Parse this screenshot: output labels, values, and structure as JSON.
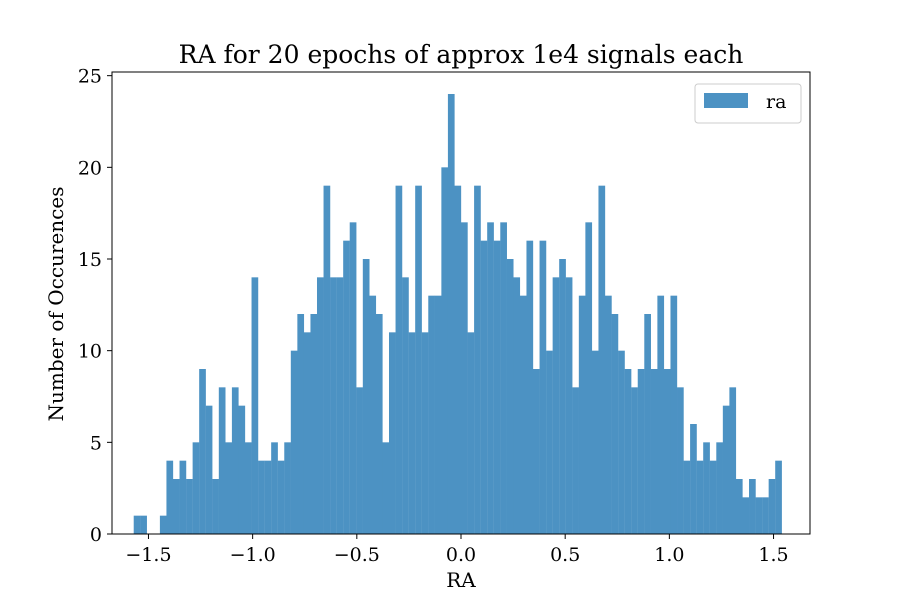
{
  "chart_data": {
    "type": "bar",
    "title": "RA for 20 epochs of approx 1e4 signals each",
    "xlabel": "RA",
    "ylabel": "Number of Occurences",
    "xlim": [
      -1.675,
      1.675
    ],
    "ylim": [
      0,
      25.2
    ],
    "x_ticks": [
      -1.5,
      -1.0,
      -0.5,
      0.0,
      0.5,
      1.0,
      1.5
    ],
    "x_tick_labels": [
      "−1.5",
      "−1.0",
      "−0.5",
      "0.0",
      "0.5",
      "1.0",
      "1.5"
    ],
    "y_ticks": [
      0,
      5,
      10,
      15,
      20,
      25
    ],
    "y_tick_labels": [
      "0",
      "5",
      "10",
      "15",
      "20",
      "25"
    ],
    "bin_range": [
      -1.5708,
      1.5394
    ],
    "counts": [
      1,
      1,
      0,
      0,
      1,
      4,
      3,
      4,
      3,
      5,
      9,
      7,
      3,
      8,
      5,
      8,
      7,
      5,
      14,
      4,
      4,
      5,
      4,
      5,
      10,
      12,
      11,
      12,
      14,
      19,
      14,
      14,
      16,
      17,
      8,
      15,
      13,
      12,
      5,
      11,
      19,
      14,
      11,
      19,
      11,
      13,
      13,
      20,
      24,
      19,
      17,
      11,
      19,
      16,
      17,
      16,
      17,
      15,
      14,
      13,
      16,
      9,
      16,
      10,
      14,
      15,
      14,
      8,
      13,
      17,
      10,
      19,
      13,
      12,
      10,
      9,
      8,
      9,
      12,
      9,
      13,
      9,
      13,
      8,
      4,
      6,
      4,
      5,
      4,
      5,
      7,
      8,
      3,
      2,
      3,
      2,
      2,
      3,
      4
    ],
    "series": [
      {
        "name": "ra",
        "color": "#4c92c3"
      }
    ],
    "legend": {
      "position": "top-right",
      "entries": [
        "ra"
      ]
    },
    "grid": false
  }
}
